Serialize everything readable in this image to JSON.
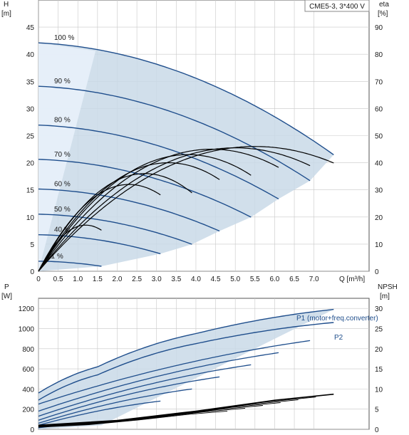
{
  "chart_data": [
    {
      "type": "line",
      "title": "CME5-3, 3*400 V",
      "xlabel": "Q [m³/h]",
      "ylabel_left_unit": "H",
      "ylabel_left_bracket": "[m]",
      "ylabel_right_unit": "eta",
      "ylabel_right_bracket": "[%]",
      "xlim": [
        0,
        8.4
      ],
      "ylim_left": [
        0,
        50
      ],
      "ylim_right": [
        0,
        100
      ],
      "xticks": [
        0,
        0.5,
        1.0,
        1.5,
        2.0,
        2.5,
        3.0,
        3.5,
        4.0,
        4.5,
        5.0,
        5.5,
        6.0,
        6.5,
        7.0
      ],
      "xtick_labels": [
        "0",
        "0.5",
        "1.0",
        "1.5",
        "2.0",
        "2.5",
        "3.0",
        "3.5",
        "4.0",
        "4.5",
        "5.0",
        "5.5",
        "6.0",
        "6.5",
        "7.0"
      ],
      "yticks_left": [
        0,
        5,
        10,
        15,
        20,
        25,
        30,
        35,
        40,
        45
      ],
      "yticks_right": [
        0,
        10,
        20,
        30,
        40,
        50,
        60,
        70,
        80,
        90
      ],
      "grid": true,
      "operating_area": {
        "max_speed_head": [
          42.1,
          40.6,
          35.0,
          24.0
        ],
        "q": [
          0,
          1.5,
          5.5,
          7.5
        ],
        "color": "#c9d9e8"
      },
      "speed_curves": [
        {
          "label": "100 %",
          "speed": 1.0,
          "q_end": 7.5
        },
        {
          "label": "90 %",
          "speed": 0.9,
          "q_end": 6.9
        },
        {
          "label": "80 %",
          "speed": 0.8,
          "q_end": 6.1
        },
        {
          "label": "70 %",
          "speed": 0.7,
          "q_end": 5.4
        },
        {
          "label": "60 %",
          "speed": 0.6,
          "q_end": 4.6
        },
        {
          "label": "50 %",
          "speed": 0.5,
          "q_end": 3.9
        },
        {
          "label": "40 %",
          "speed": 0.4,
          "q_end": 3.1
        },
        {
          "label": "21 %",
          "speed": 0.21,
          "q_end": 1.6
        }
      ],
      "eta_curves": [
        {
          "speed": 1.0,
          "peak_q": 5.5,
          "peak_eta": 46,
          "q_end": 7.5
        },
        {
          "speed": 0.9,
          "peak_q": 5.0,
          "peak_eta": 45.5,
          "q_end": 6.9
        },
        {
          "speed": 0.8,
          "peak_q": 4.4,
          "peak_eta": 45,
          "q_end": 6.1
        },
        {
          "speed": 0.7,
          "peak_q": 3.8,
          "peak_eta": 43,
          "q_end": 5.4
        },
        {
          "speed": 0.6,
          "peak_q": 3.3,
          "peak_eta": 40,
          "q_end": 4.6
        },
        {
          "speed": 0.5,
          "peak_q": 2.7,
          "peak_eta": 36,
          "q_end": 3.9
        },
        {
          "speed": 0.4,
          "peak_q": 2.3,
          "peak_eta": 32,
          "q_end": 3.1
        },
        {
          "speed": 0.21,
          "peak_q": 1.2,
          "peak_eta": 17,
          "q_end": 1.6
        }
      ],
      "colors": {
        "curve": "#1f4e8c",
        "eta": "#000000",
        "area": "#c9d9e8",
        "grid": "#c8c8c8"
      }
    },
    {
      "type": "line",
      "ylabel_left_unit": "P",
      "ylabel_left_bracket": "[W]",
      "ylabel_right_unit": "NPSH",
      "ylabel_right_bracket": "[m]",
      "xlim": [
        0,
        8.4
      ],
      "ylim_left": [
        0,
        1300
      ],
      "ylim_right": [
        0,
        32.5
      ],
      "yticks_left": [
        0,
        200,
        400,
        600,
        800,
        1000,
        1200
      ],
      "yticks_right": [
        0,
        5,
        10,
        15,
        20,
        25,
        30
      ],
      "grid": true,
      "series": [
        {
          "name": "P1 (motor+freq.converter)",
          "values_at_q": [
            [
              0,
              360
            ],
            [
              1.5,
              620
            ],
            [
              4.0,
              950
            ],
            [
              7.5,
              1190
            ]
          ]
        },
        {
          "name": "P2",
          "values_at_q": [
            [
              0,
              290
            ],
            [
              1.5,
              540
            ],
            [
              4.0,
              850
            ],
            [
              7.5,
              1060
            ]
          ]
        }
      ],
      "power_curves_reduced_speeds": [
        {
          "speed": 0.9,
          "q_end": 6.9,
          "p_start": 250,
          "p_end": 880
        },
        {
          "speed": 0.8,
          "q_end": 6.1,
          "p_start": 180,
          "p_end": 760
        },
        {
          "speed": 0.7,
          "q_end": 5.4,
          "p_start": 130,
          "p_end": 640
        },
        {
          "speed": 0.6,
          "q_end": 4.6,
          "p_start": 90,
          "p_end": 520
        },
        {
          "speed": 0.5,
          "q_end": 3.9,
          "p_start": 60,
          "p_end": 400
        },
        {
          "speed": 0.4,
          "q_end": 3.1,
          "p_start": 40,
          "p_end": 280
        },
        {
          "speed": 0.21,
          "q_end": 1.6,
          "p_start": 15,
          "p_end": 70
        }
      ],
      "npsh": {
        "q": [
          0,
          2,
          4,
          6,
          7.5
        ],
        "values": [
          1,
          2.2,
          4.5,
          7.2,
          8.7
        ]
      }
    }
  ]
}
